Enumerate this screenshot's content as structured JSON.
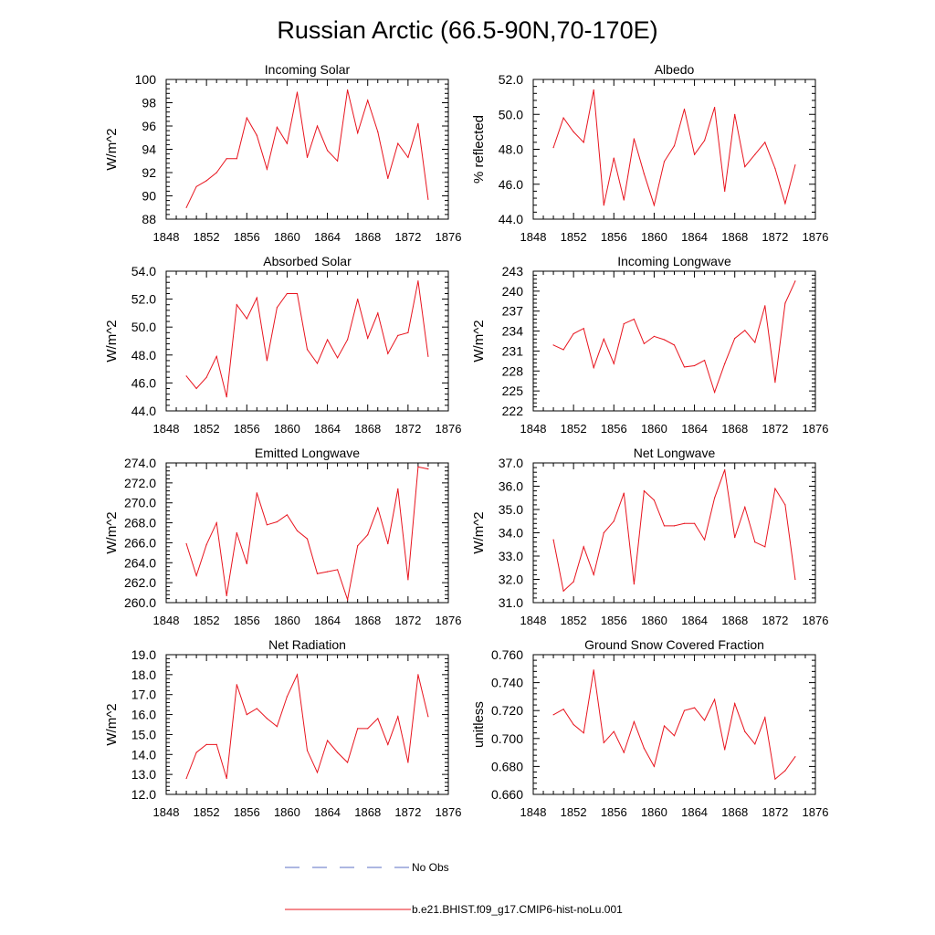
{
  "title": "Russian Arctic (66.5-90N,70-170E)",
  "colors": {
    "model": "#e8141e",
    "obs": "#5b6fc4",
    "axis": "#000000"
  },
  "legend": {
    "obs_label": "No Obs",
    "model_label": "b.e21.BHIST.f09_g17.CMIP6-hist-noLu.001"
  },
  "chart_data": [
    {
      "type": "line",
      "title": "Incoming Solar",
      "ylabel": "W/m^2",
      "xlim": [
        1848,
        1876
      ],
      "xticks": [
        "1848",
        "1852",
        "1856",
        "1860",
        "1864",
        "1868",
        "1872",
        "1876"
      ],
      "ylim": [
        88,
        100
      ],
      "yticks": [
        "88",
        "90",
        "92",
        "94",
        "96",
        "98",
        "100"
      ],
      "x": [
        1850,
        1851,
        1852,
        1853,
        1854,
        1855,
        1856,
        1857,
        1858,
        1859,
        1860,
        1861,
        1862,
        1863,
        1864,
        1865,
        1866,
        1867,
        1868,
        1869,
        1870,
        1871,
        1872,
        1873,
        1874
      ],
      "series": [
        {
          "values": [
            89.0,
            90.8,
            91.3,
            92.0,
            93.2,
            93.2,
            96.7,
            95.2,
            92.3,
            95.9,
            94.5,
            98.9,
            93.3,
            96.0,
            93.9,
            93.0,
            99.1,
            95.4,
            98.2,
            95.5,
            91.5,
            94.5,
            93.3,
            96.2,
            89.7
          ]
        }
      ]
    },
    {
      "type": "line",
      "title": "Albedo",
      "ylabel": "% reflected",
      "xlim": [
        1848,
        1876
      ],
      "xticks": [
        "1848",
        "1852",
        "1856",
        "1860",
        "1864",
        "1868",
        "1872",
        "1876"
      ],
      "ylim": [
        44.0,
        52.0
      ],
      "yticks": [
        "44.0",
        "46.0",
        "48.0",
        "50.0",
        "52.0"
      ],
      "x": [
        1850,
        1851,
        1852,
        1853,
        1854,
        1855,
        1856,
        1857,
        1858,
        1859,
        1860,
        1861,
        1862,
        1863,
        1864,
        1865,
        1866,
        1867,
        1868,
        1869,
        1870,
        1871,
        1872,
        1873,
        1874
      ],
      "series": [
        {
          "values": [
            48.1,
            49.8,
            49.0,
            48.4,
            51.4,
            44.8,
            47.5,
            45.1,
            48.6,
            46.6,
            44.8,
            47.3,
            48.2,
            50.3,
            47.7,
            48.5,
            50.4,
            45.6,
            50.0,
            47.0,
            47.7,
            48.4,
            46.9,
            44.9,
            47.1
          ]
        }
      ]
    },
    {
      "type": "line",
      "title": "Absorbed Solar",
      "ylabel": "W/m^2",
      "xlim": [
        1848,
        1876
      ],
      "xticks": [
        "1848",
        "1852",
        "1856",
        "1860",
        "1864",
        "1868",
        "1872",
        "1876"
      ],
      "ylim": [
        44.0,
        54.0
      ],
      "yticks": [
        "44.0",
        "46.0",
        "48.0",
        "50.0",
        "52.0",
        "54.0"
      ],
      "x": [
        1850,
        1851,
        1852,
        1853,
        1854,
        1855,
        1856,
        1857,
        1858,
        1859,
        1860,
        1861,
        1862,
        1863,
        1864,
        1865,
        1866,
        1867,
        1868,
        1869,
        1870,
        1871,
        1872,
        1873,
        1874
      ],
      "series": [
        {
          "values": [
            46.5,
            45.6,
            46.4,
            47.9,
            45.0,
            51.6,
            50.6,
            52.1,
            47.6,
            51.4,
            52.4,
            52.4,
            48.4,
            47.4,
            49.1,
            47.8,
            49.1,
            52.0,
            49.2,
            51.0,
            48.1,
            49.4,
            49.6,
            53.3,
            47.9
          ]
        }
      ]
    },
    {
      "type": "line",
      "title": "Incoming Longwave",
      "ylabel": "W/m^2",
      "xlim": [
        1848,
        1876
      ],
      "xticks": [
        "1848",
        "1852",
        "1856",
        "1860",
        "1864",
        "1868",
        "1872",
        "1876"
      ],
      "ylim": [
        222,
        243
      ],
      "yticks": [
        "222",
        "225",
        "228",
        "231",
        "234",
        "237",
        "240",
        "243"
      ],
      "x": [
        1850,
        1851,
        1852,
        1853,
        1854,
        1855,
        1856,
        1857,
        1858,
        1859,
        1860,
        1861,
        1862,
        1863,
        1864,
        1865,
        1866,
        1867,
        1868,
        1869,
        1870,
        1871,
        1872,
        1873,
        1874
      ],
      "series": [
        {
          "values": [
            231.9,
            231.2,
            233.6,
            234.4,
            228.5,
            232.8,
            229.1,
            235.1,
            235.8,
            232.1,
            233.2,
            232.7,
            231.9,
            228.6,
            228.8,
            229.6,
            224.8,
            229.1,
            232.9,
            234.1,
            232.3,
            237.8,
            226.3,
            238.2,
            241.5
          ]
        }
      ]
    },
    {
      "type": "line",
      "title": "Emitted Longwave",
      "ylabel": "W/m^2",
      "xlim": [
        1848,
        1876
      ],
      "xticks": [
        "1848",
        "1852",
        "1856",
        "1860",
        "1864",
        "1868",
        "1872",
        "1876"
      ],
      "ylim": [
        260.0,
        274.0
      ],
      "yticks": [
        "260.0",
        "262.0",
        "264.0",
        "266.0",
        "268.0",
        "270.0",
        "272.0",
        "274.0"
      ],
      "x": [
        1850,
        1851,
        1852,
        1853,
        1854,
        1855,
        1856,
        1857,
        1858,
        1859,
        1860,
        1861,
        1862,
        1863,
        1864,
        1865,
        1866,
        1867,
        1868,
        1869,
        1870,
        1871,
        1872,
        1873,
        1874
      ],
      "series": [
        {
          "values": [
            265.9,
            262.7,
            265.8,
            268.0,
            260.7,
            267.0,
            263.9,
            271.0,
            267.8,
            268.1,
            268.8,
            267.2,
            266.4,
            262.9,
            263.1,
            263.3,
            260.3,
            265.7,
            266.8,
            269.5,
            265.9,
            271.4,
            262.3,
            273.6,
            273.4
          ]
        }
      ]
    },
    {
      "type": "line",
      "title": "Net Longwave",
      "ylabel": "W/m^2",
      "xlim": [
        1848,
        1876
      ],
      "xticks": [
        "1848",
        "1852",
        "1856",
        "1860",
        "1864",
        "1868",
        "1872",
        "1876"
      ],
      "ylim": [
        31.0,
        37.0
      ],
      "yticks": [
        "31.0",
        "32.0",
        "33.0",
        "34.0",
        "35.0",
        "36.0",
        "37.0"
      ],
      "x": [
        1850,
        1851,
        1852,
        1853,
        1854,
        1855,
        1856,
        1857,
        1858,
        1859,
        1860,
        1861,
        1862,
        1863,
        1864,
        1865,
        1866,
        1867,
        1868,
        1869,
        1870,
        1871,
        1872,
        1873,
        1874
      ],
      "series": [
        {
          "values": [
            33.7,
            31.5,
            31.9,
            33.4,
            32.2,
            34.0,
            34.5,
            35.7,
            31.8,
            35.8,
            35.4,
            34.3,
            34.3,
            34.4,
            34.4,
            33.7,
            35.5,
            36.7,
            33.8,
            35.1,
            33.6,
            33.4,
            35.9,
            35.2,
            32.0
          ]
        }
      ]
    },
    {
      "type": "line",
      "title": "Net Radiation",
      "ylabel": "W/m^2",
      "xlim": [
        1848,
        1876
      ],
      "xticks": [
        "1848",
        "1852",
        "1856",
        "1860",
        "1864",
        "1868",
        "1872",
        "1876"
      ],
      "ylim": [
        12.0,
        19.0
      ],
      "yticks": [
        "12.0",
        "13.0",
        "14.0",
        "15.0",
        "16.0",
        "17.0",
        "18.0",
        "19.0"
      ],
      "x": [
        1850,
        1851,
        1852,
        1853,
        1854,
        1855,
        1856,
        1857,
        1858,
        1859,
        1860,
        1861,
        1862,
        1863,
        1864,
        1865,
        1866,
        1867,
        1868,
        1869,
        1870,
        1871,
        1872,
        1873,
        1874
      ],
      "series": [
        {
          "values": [
            12.8,
            14.1,
            14.5,
            14.5,
            12.8,
            17.5,
            16.0,
            16.3,
            15.8,
            15.4,
            16.9,
            18.0,
            14.2,
            13.1,
            14.7,
            14.1,
            13.6,
            15.3,
            15.3,
            15.8,
            14.5,
            15.9,
            13.6,
            18.0,
            15.9
          ]
        }
      ]
    },
    {
      "type": "line",
      "title": "Ground Snow Covered Fraction",
      "ylabel": "unitless",
      "xlim": [
        1848,
        1876
      ],
      "xticks": [
        "1848",
        "1852",
        "1856",
        "1860",
        "1864",
        "1868",
        "1872",
        "1876"
      ],
      "ylim": [
        0.66,
        0.76
      ],
      "yticks": [
        "0.660",
        "0.680",
        "0.700",
        "0.720",
        "0.740",
        "0.760"
      ],
      "x": [
        1850,
        1851,
        1852,
        1853,
        1854,
        1855,
        1856,
        1857,
        1858,
        1859,
        1860,
        1861,
        1862,
        1863,
        1864,
        1865,
        1866,
        1867,
        1868,
        1869,
        1870,
        1871,
        1872,
        1873,
        1874
      ],
      "series": [
        {
          "values": [
            0.717,
            0.721,
            0.71,
            0.704,
            0.749,
            0.697,
            0.705,
            0.69,
            0.712,
            0.693,
            0.68,
            0.709,
            0.702,
            0.72,
            0.722,
            0.713,
            0.728,
            0.692,
            0.725,
            0.705,
            0.696,
            0.715,
            0.671,
            0.677,
            0.687
          ]
        }
      ]
    }
  ]
}
